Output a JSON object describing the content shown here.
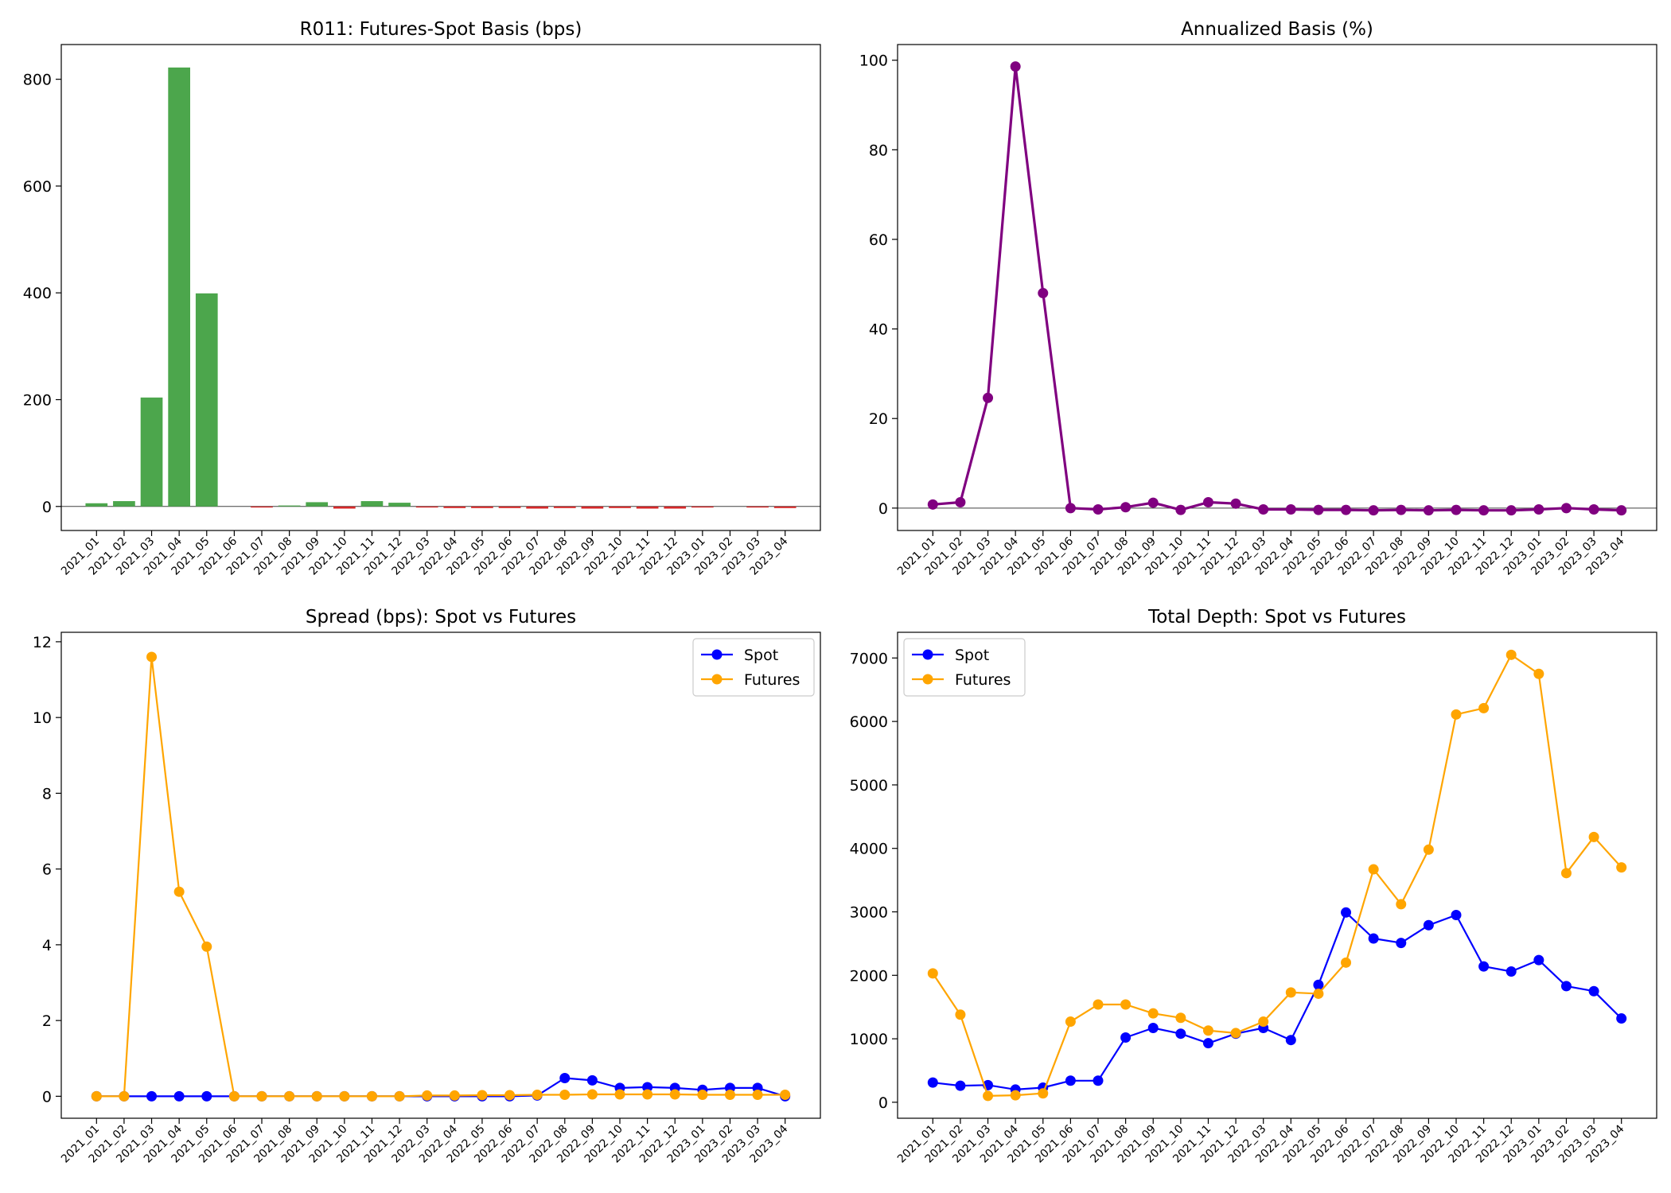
{
  "chart_data": [
    {
      "type": "bar",
      "title": "R011: Futures-Spot Basis (bps)",
      "xlabel": "",
      "ylabel": "",
      "categories": [
        "2021_01",
        "2021_02",
        "2021_03",
        "2021_04",
        "2021_05",
        "2021_06",
        "2021_07",
        "2021_08",
        "2021_09",
        "2021_10",
        "2021_11",
        "2021_12",
        "2022_03",
        "2022_04",
        "2022_05",
        "2022_06",
        "2022_07",
        "2022_08",
        "2022_09",
        "2022_10",
        "2022_11",
        "2022_12",
        "2023_01",
        "2023_02",
        "2023_03",
        "2023_04"
      ],
      "values": [
        6,
        10,
        204,
        822,
        399,
        0,
        -2,
        1,
        8,
        -4,
        10,
        7,
        -2,
        -3,
        -3,
        -3,
        -4,
        -3,
        -4,
        -3,
        -4,
        -4,
        -2,
        0,
        -2,
        -3
      ],
      "ylim": [
        -45,
        865
      ],
      "yticks": [
        0,
        200,
        400,
        600,
        800
      ],
      "positive_color": "#4ca64c",
      "negative_color": "#d62728",
      "zero_line": true,
      "grid": false
    },
    {
      "type": "line",
      "title": "Annualized Basis (%)",
      "xlabel": "",
      "ylabel": "",
      "categories": [
        "2021_01",
        "2021_02",
        "2021_03",
        "2021_04",
        "2021_05",
        "2021_06",
        "2021_07",
        "2021_08",
        "2021_09",
        "2021_10",
        "2021_11",
        "2021_12",
        "2022_03",
        "2022_04",
        "2022_05",
        "2022_06",
        "2022_07",
        "2022_08",
        "2022_09",
        "2022_10",
        "2022_11",
        "2022_12",
        "2023_01",
        "2023_02",
        "2023_03",
        "2023_04"
      ],
      "series": [
        {
          "name": "",
          "color": "#800080",
          "values": [
            0.8,
            1.3,
            24.6,
            98.6,
            48.0,
            0.0,
            -0.3,
            0.2,
            1.2,
            -0.4,
            1.3,
            1.0,
            -0.3,
            -0.3,
            -0.4,
            -0.4,
            -0.5,
            -0.4,
            -0.5,
            -0.4,
            -0.5,
            -0.5,
            -0.3,
            0.0,
            -0.3,
            -0.5
          ]
        }
      ],
      "ylim": [
        -5.0,
        103.5
      ],
      "yticks": [
        0,
        20,
        40,
        60,
        80,
        100
      ],
      "zero_line": true,
      "grid": false
    },
    {
      "type": "line",
      "title": "Spread (bps): Spot vs Futures",
      "xlabel": "",
      "ylabel": "",
      "categories": [
        "2021_01",
        "2021_02",
        "2021_03",
        "2021_04",
        "2021_05",
        "2021_06",
        "2021_07",
        "2021_08",
        "2021_09",
        "2021_10",
        "2021_11",
        "2021_12",
        "2022_03",
        "2022_04",
        "2022_05",
        "2022_06",
        "2022_07",
        "2022_08",
        "2022_09",
        "2022_10",
        "2022_11",
        "2022_12",
        "2023_01",
        "2023_02",
        "2023_03",
        "2023_04"
      ],
      "series": [
        {
          "name": "Spot",
          "color": "#0000ff",
          "values": [
            0,
            0,
            0,
            0,
            0,
            0,
            0,
            0,
            0,
            0,
            0,
            0,
            0,
            0,
            0,
            0,
            0.02,
            0.48,
            0.42,
            0.22,
            0.24,
            0.22,
            0.17,
            0.22,
            0.22,
            0.0
          ]
        },
        {
          "name": "Futures",
          "color": "#ffa500",
          "values": [
            0,
            0,
            11.6,
            5.4,
            3.95,
            0,
            0,
            0,
            0,
            0,
            0,
            0,
            0.02,
            0.02,
            0.03,
            0.03,
            0.04,
            0.04,
            0.05,
            0.05,
            0.05,
            0.05,
            0.04,
            0.04,
            0.04,
            0.04
          ]
        }
      ],
      "ylim": [
        -0.58,
        12.25
      ],
      "yticks": [
        0,
        2,
        4,
        6,
        8,
        10,
        12
      ],
      "legend": "top-right",
      "grid": false
    },
    {
      "type": "line",
      "title": "Total Depth: Spot vs Futures",
      "xlabel": "",
      "ylabel": "",
      "categories": [
        "2021_01",
        "2021_02",
        "2021_03",
        "2021_04",
        "2021_05",
        "2021_06",
        "2021_07",
        "2021_08",
        "2021_09",
        "2021_10",
        "2021_11",
        "2021_12",
        "2022_03",
        "2022_04",
        "2022_05",
        "2022_06",
        "2022_07",
        "2022_08",
        "2022_09",
        "2022_10",
        "2022_11",
        "2022_12",
        "2023_01",
        "2023_02",
        "2023_03",
        "2023_04"
      ],
      "series": [
        {
          "name": "Spot",
          "color": "#0000ff",
          "values": [
            310,
            260,
            270,
            200,
            230,
            340,
            340,
            1020,
            1170,
            1080,
            930,
            1080,
            1170,
            980,
            1850,
            2990,
            2580,
            2510,
            2790,
            2950,
            2140,
            2060,
            2240,
            1830,
            1750,
            1320
          ]
        },
        {
          "name": "Futures",
          "color": "#ffa500",
          "values": [
            2030,
            1380,
            100,
            110,
            140,
            1270,
            1540,
            1540,
            1400,
            1330,
            1130,
            1090,
            1270,
            1730,
            1710,
            2200,
            3670,
            3120,
            3980,
            6110,
            6210,
            7050,
            6750,
            3610,
            4180,
            3700
          ]
        }
      ],
      "ylim": [
        -252,
        7405
      ],
      "yticks": [
        0,
        1000,
        2000,
        3000,
        4000,
        5000,
        6000,
        7000
      ],
      "legend": "top-left",
      "grid": false
    }
  ]
}
